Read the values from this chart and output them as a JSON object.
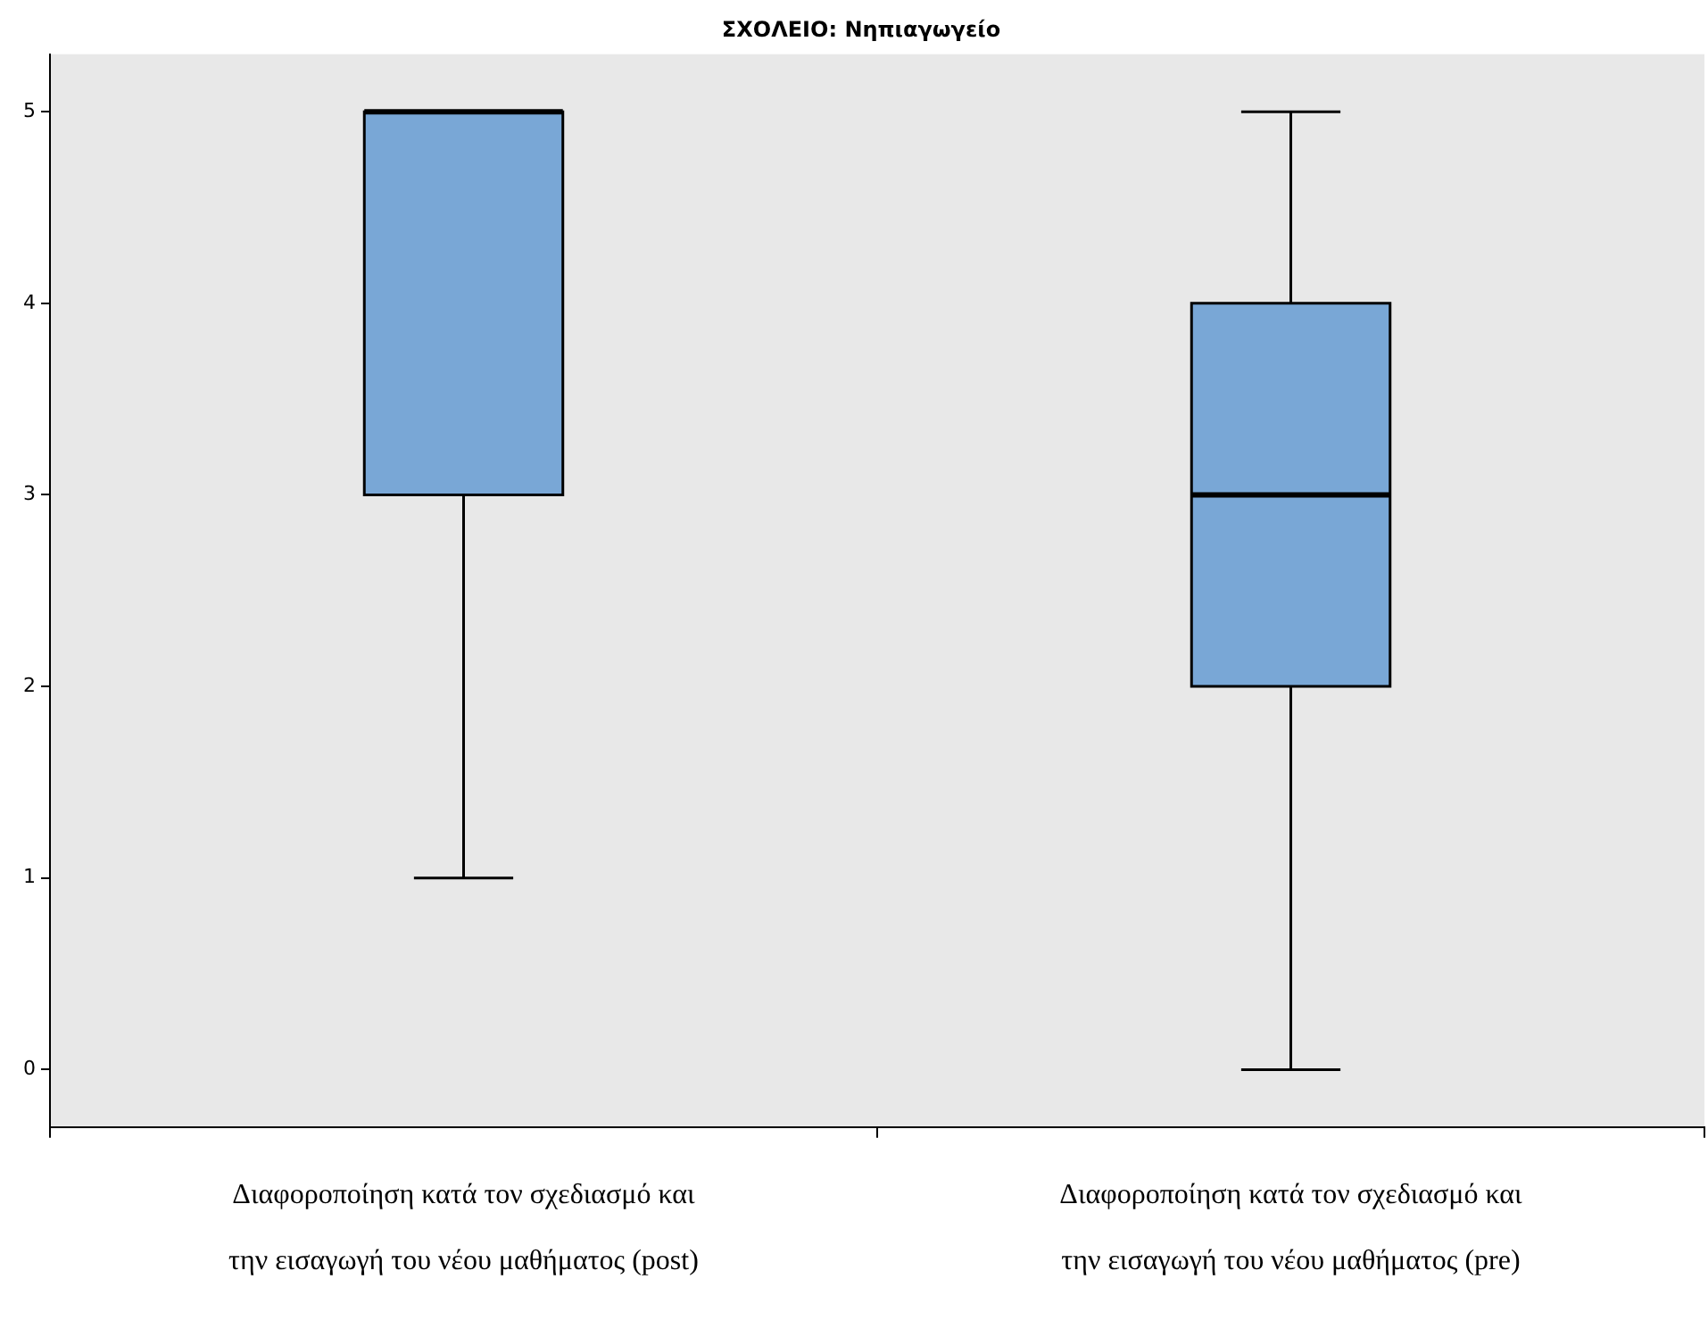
{
  "chart_data": {
    "type": "box",
    "title": "ΣΧΟΛΕΙΟ: Νηπιαγωγείο",
    "categories": [
      "Διαφοροποίηση κατά τον σχεδιασμό και την εισαγωγή του νέου μαθήματος (post)",
      "Διαφοροποίηση κατά τον σχεδιασμό και την εισαγωγή του νέου μαθήματος (pre)"
    ],
    "boxes": [
      {
        "low": 1,
        "q1": 3,
        "median": 5,
        "q3": 5,
        "high": 5
      },
      {
        "low": 0,
        "q1": 2,
        "median": 3,
        "q3": 4,
        "high": 5
      }
    ],
    "color": "#79a7d6",
    "ylim": [
      -0.3,
      5.3
    ],
    "yticks": [
      0,
      1,
      2,
      3,
      4,
      5
    ],
    "grid": false,
    "legend": false
  }
}
